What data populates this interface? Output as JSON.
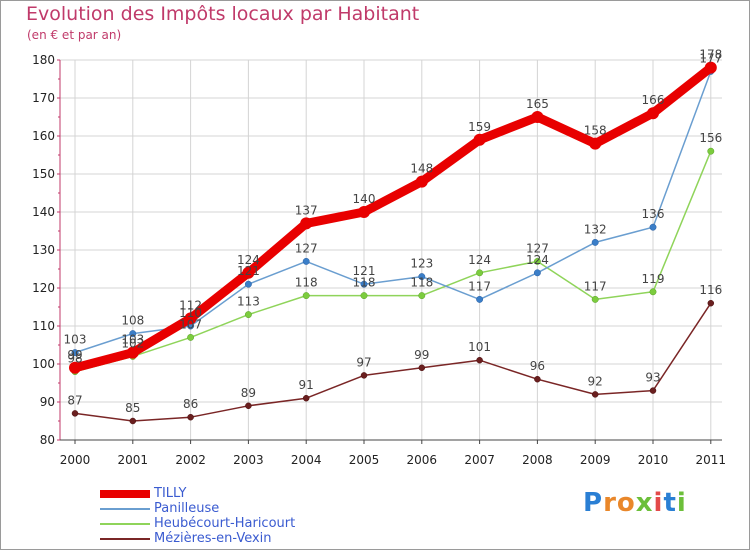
{
  "title": "Evolution des Impôts locaux par Habitant",
  "subtitle": "(en € et par an)",
  "logo": {
    "letters": [
      "P",
      "r",
      "o",
      "x",
      "i",
      "t",
      "i"
    ],
    "colors": [
      "#2a7fd4",
      "#e9872a",
      "#e9872a",
      "#6cbf3a",
      "#e34a4a",
      "#2a7fd4",
      "#6cbf3a"
    ]
  },
  "chart_data": {
    "type": "line",
    "title": "Evolution des Impôts locaux par Habitant",
    "subtitle": "(en € et par an)",
    "x": [
      "2000",
      "2001",
      "2002",
      "2003",
      "2004",
      "2005",
      "2006",
      "2007",
      "2008",
      "2009",
      "2010",
      "2011"
    ],
    "ylim": [
      80,
      180
    ],
    "yticks": [
      80,
      90,
      100,
      110,
      120,
      130,
      140,
      150,
      160,
      170,
      180
    ],
    "grid": true,
    "legend_position": "bottom-left",
    "series": [
      {
        "name": "TILLY",
        "color": "#e80000",
        "values": [
          99,
          103,
          112,
          124,
          137,
          140,
          148,
          159,
          165,
          158,
          166,
          178
        ],
        "labels": [
          "99",
          "103",
          "112",
          "124",
          "137",
          "140",
          "148",
          "159",
          "165",
          "158",
          "166",
          "178"
        ]
      },
      {
        "name": "Panilleuse",
        "color": "#6a9ed0",
        "values": [
          103,
          108,
          110,
          121,
          127,
          121,
          123,
          117,
          124,
          132,
          136,
          177
        ],
        "labels": [
          "103",
          "108",
          "110",
          "121",
          "127",
          "121",
          "123",
          "117",
          "124",
          "132",
          "136",
          "177"
        ]
      },
      {
        "name": "Heubécourt-Haricourt",
        "color": "#8fd45a",
        "values": [
          98,
          102,
          107,
          113,
          118,
          118,
          118,
          124,
          127,
          117,
          119,
          156
        ],
        "labels": [
          "98",
          "102",
          "107",
          "113",
          "118",
          "118",
          "118",
          "124",
          "127",
          "117",
          "119",
          "156"
        ]
      },
      {
        "name": "Mézières-en-Vexin",
        "color": "#7a2626",
        "values": [
          87,
          85,
          86,
          89,
          91,
          97,
          99,
          101,
          96,
          92,
          93,
          116
        ],
        "labels": [
          "87",
          "85",
          "86",
          "89",
          "91",
          "97",
          "99",
          "101",
          "96",
          "92",
          "93",
          "116"
        ]
      }
    ]
  }
}
